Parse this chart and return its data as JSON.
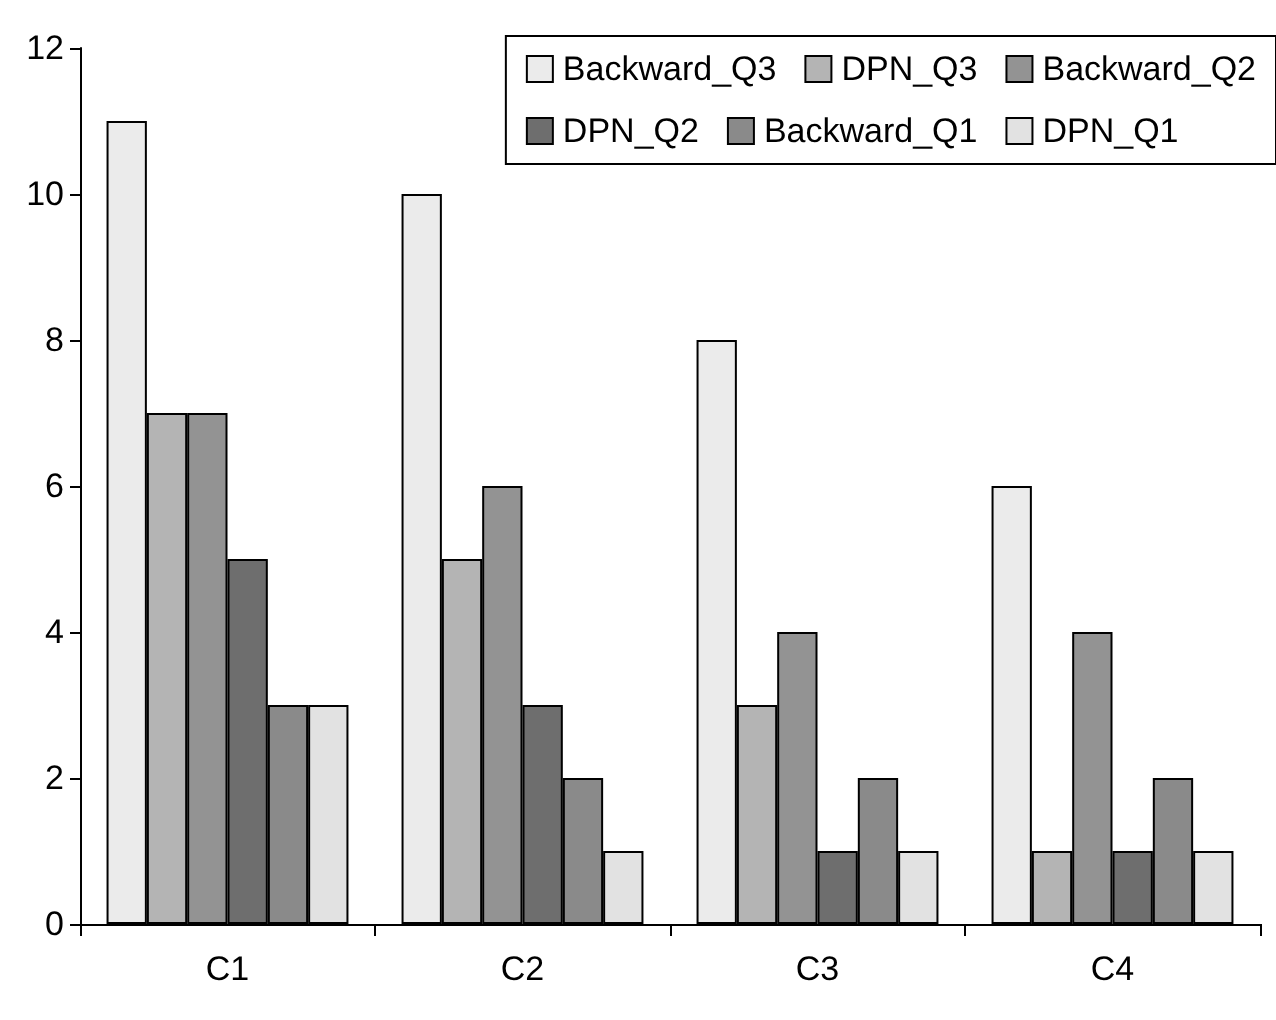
{
  "chart_data": {
    "type": "bar",
    "categories": [
      "C1",
      "C2",
      "C3",
      "C4"
    ],
    "series": [
      {
        "name": "Backward_Q3",
        "color": "#ebebeb",
        "values": [
          11,
          10,
          8,
          6
        ]
      },
      {
        "name": "DPN_Q3",
        "color": "#b4b4b4",
        "values": [
          7,
          5,
          3,
          1
        ]
      },
      {
        "name": "Backward_Q2",
        "color": "#939393",
        "values": [
          7,
          6,
          4,
          4
        ]
      },
      {
        "name": "DPN_Q2",
        "color": "#6e6e6e",
        "values": [
          5,
          3,
          1,
          1
        ]
      },
      {
        "name": "Backward_Q1",
        "color": "#8a8a8a",
        "values": [
          3,
          2,
          2,
          2
        ]
      },
      {
        "name": "DPN_Q1",
        "color": "#e2e2e2",
        "values": [
          3,
          1,
          1,
          1
        ]
      }
    ],
    "ylim": [
      0,
      12
    ],
    "yticks": [
      0,
      2,
      4,
      6,
      8,
      10,
      12
    ],
    "grid": false,
    "legend": "top right"
  }
}
